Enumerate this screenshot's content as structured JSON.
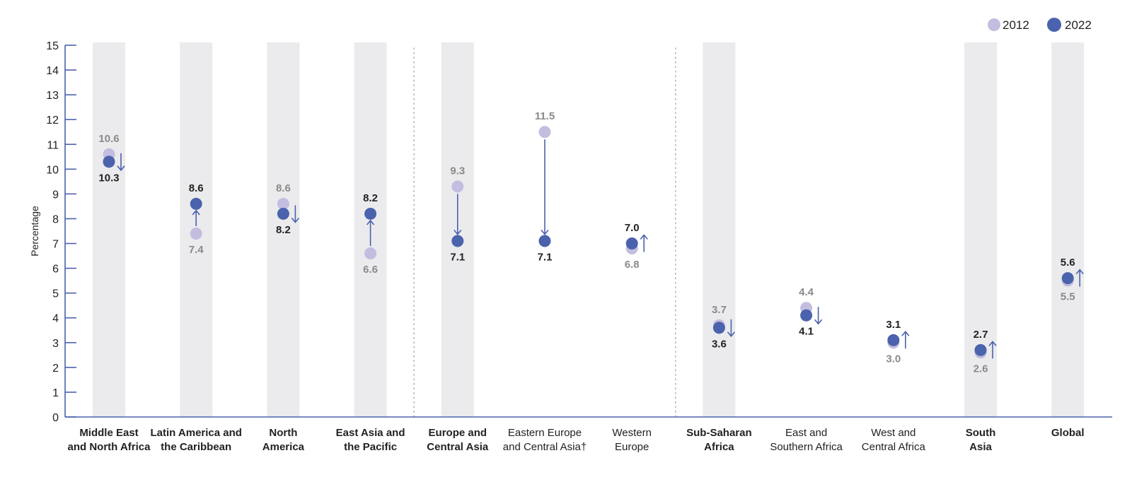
{
  "chart_data": {
    "type": "dot-plot",
    "ylabel": "Percentage",
    "ylim": [
      0,
      15
    ],
    "yticks": [
      0,
      1,
      2,
      3,
      4,
      5,
      6,
      7,
      8,
      9,
      10,
      11,
      12,
      13,
      14,
      15
    ],
    "legend": {
      "placement": "top-right",
      "entries": [
        {
          "name": "2012",
          "color": "#c4bde0"
        },
        {
          "name": "2022",
          "color": "#4b62ad"
        }
      ]
    },
    "colors": {
      "dot_2012": "#c4bde0",
      "dot_2022": "#4b62ad",
      "arrow": "#4b62ad",
      "axis": "#4b62ad",
      "band": "#ebebed",
      "separator": "#b0b0b0"
    },
    "categories": [
      {
        "line1": "Middle East",
        "line2": "and North Africa",
        "bold": true,
        "band": true,
        "v2012": 10.6,
        "v2022": 10.3,
        "l2012": "10.6",
        "l2022": "10.3"
      },
      {
        "line1": "Latin America and",
        "line2": "the Caribbean",
        "bold": true,
        "band": true,
        "v2012": 7.4,
        "v2022": 8.6,
        "l2012": "7.4",
        "l2022": "8.6"
      },
      {
        "line1": "North",
        "line2": "America",
        "bold": true,
        "band": true,
        "v2012": 8.6,
        "v2022": 8.2,
        "l2012": "8.6",
        "l2022": "8.2"
      },
      {
        "line1": "East Asia and",
        "line2": "the Pacific",
        "bold": true,
        "band": true,
        "v2012": 6.6,
        "v2022": 8.2,
        "l2012": "6.6",
        "l2022": "8.2"
      },
      {
        "line1": "Europe and",
        "line2": "Central Asia",
        "bold": true,
        "band": true,
        "separator_before": true,
        "v2012": 9.3,
        "v2022": 7.1,
        "l2012": "9.3",
        "l2022": "7.1"
      },
      {
        "line1": "Eastern Europe",
        "line2": "and Central Asia†",
        "bold": false,
        "band": false,
        "v2012": 11.5,
        "v2022": 7.1,
        "l2012": "11.5",
        "l2022": "7.1"
      },
      {
        "line1": "Western",
        "line2": "Europe",
        "bold": false,
        "band": false,
        "v2012": 6.8,
        "v2022": 7.0,
        "l2012": "6.8",
        "l2022": "7.0"
      },
      {
        "line1": "Sub-Saharan",
        "line2": "Africa",
        "bold": true,
        "band": true,
        "separator_before": true,
        "v2012": 3.7,
        "v2022": 3.6,
        "l2012": "3.7",
        "l2022": "3.6"
      },
      {
        "line1": "East and",
        "line2": "Southern Africa",
        "bold": false,
        "band": false,
        "v2012": 4.4,
        "v2022": 4.1,
        "l2012": "4.4",
        "l2022": "4.1"
      },
      {
        "line1": "West and",
        "line2": "Central Africa",
        "bold": false,
        "band": false,
        "v2012": 3.0,
        "v2022": 3.1,
        "l2012": "3.0",
        "l2022": "3.1"
      },
      {
        "line1": "South",
        "line2": "Asia",
        "bold": true,
        "band": true,
        "v2012": 2.6,
        "v2022": 2.7,
        "l2012": "2.6",
        "l2022": "2.7"
      },
      {
        "line1": "Global",
        "line2": "",
        "bold": true,
        "band": true,
        "v2012": 5.5,
        "v2022": 5.6,
        "l2012": "5.5",
        "l2022": "5.6"
      }
    ]
  }
}
